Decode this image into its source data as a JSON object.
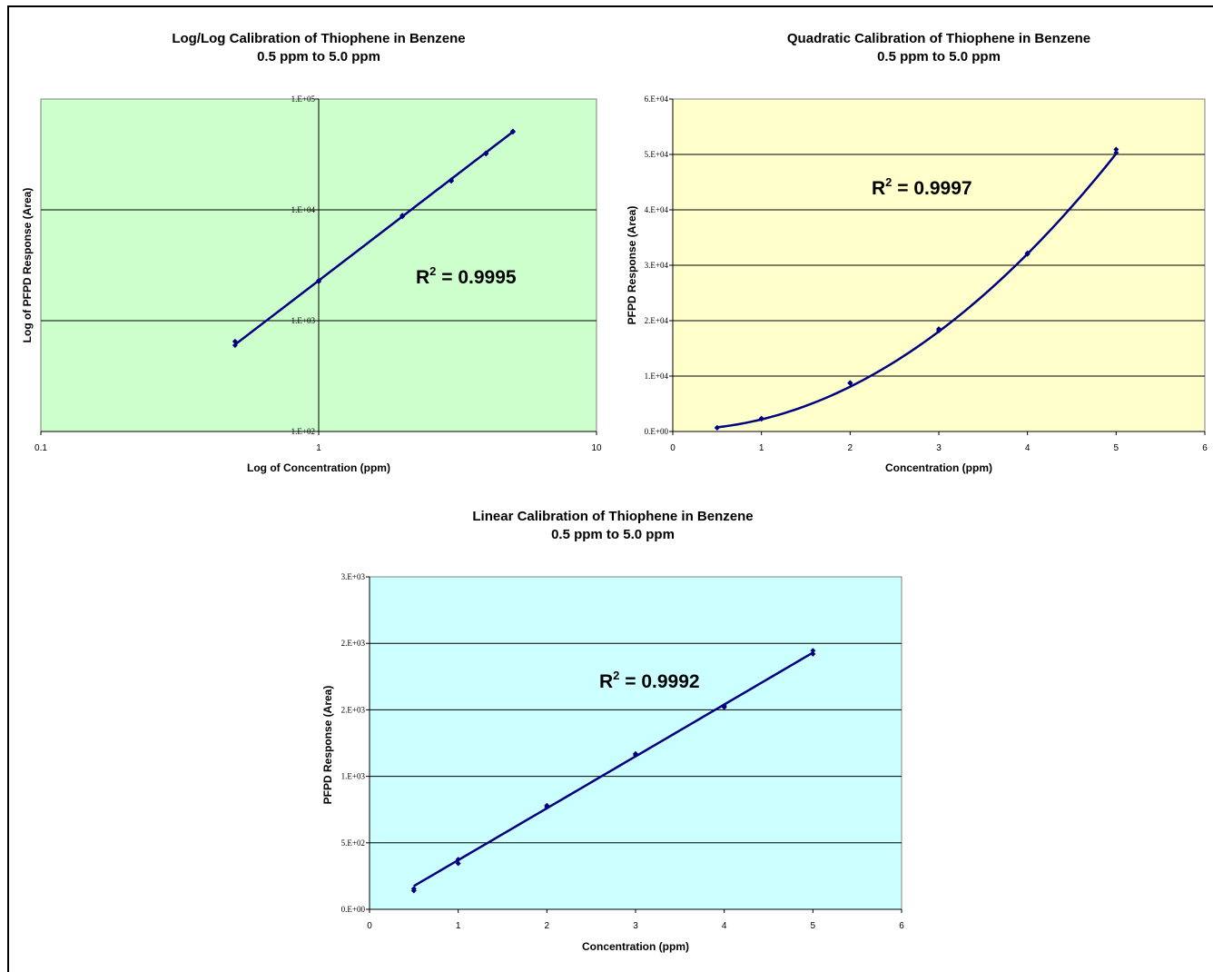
{
  "chart_data": [
    {
      "type": "scatter",
      "title_line1": "Log/Log Calibration of Thiophene in Benzene",
      "title_line2": "0.5 ppm to 5.0 ppm",
      "xlabel": "Log of Concentration (ppm)",
      "ylabel": "Log of PFPD Response (Area)",
      "xscale": "log",
      "yscale": "log",
      "xlim": [
        0.1,
        10
      ],
      "ylim": [
        100,
        100000
      ],
      "xticks": [
        0.1,
        1,
        10
      ],
      "xtick_labels": [
        "0.1",
        "1",
        "10"
      ],
      "yticks": [
        100,
        1000,
        10000,
        100000
      ],
      "ytick_labels": [
        "1.E+02",
        "1.E+03",
        "1.E+04",
        "1.E+05"
      ],
      "y_axis_crosses_x_at": 1,
      "grid": "horizontal",
      "background": "#ccffcc",
      "r2_label": "R",
      "r2_sup": "2",
      "r2_value": " = 0.9995",
      "points": [
        {
          "x": 0.5,
          "y": 600
        },
        {
          "x": 0.5,
          "y": 650
        },
        {
          "x": 1,
          "y": 2250
        },
        {
          "x": 1,
          "y": 2300
        },
        {
          "x": 2,
          "y": 8700
        },
        {
          "x": 2,
          "y": 8900
        },
        {
          "x": 3,
          "y": 18200
        },
        {
          "x": 3,
          "y": 18600
        },
        {
          "x": 4,
          "y": 32000
        },
        {
          "x": 4,
          "y": 32500
        },
        {
          "x": 5,
          "y": 50500
        },
        {
          "x": 5,
          "y": 51200
        }
      ],
      "fit": {
        "kind": "power",
        "a": 2300,
        "b": 1.92
      }
    },
    {
      "type": "scatter",
      "title_line1": "Quadratic Calibration of Thiophene in Benzene",
      "title_line2": "0.5 ppm to 5.0 ppm",
      "xlabel": "Concentration (ppm)",
      "ylabel": "PFPD Response (Area)",
      "xscale": "linear",
      "yscale": "linear",
      "xlim": [
        0,
        6
      ],
      "ylim": [
        0,
        60000
      ],
      "xticks": [
        0,
        1,
        2,
        3,
        4,
        5,
        6
      ],
      "xtick_labels": [
        "0",
        "1",
        "2",
        "3",
        "4",
        "5",
        "6"
      ],
      "yticks": [
        0,
        10000,
        20000,
        30000,
        40000,
        50000,
        60000
      ],
      "ytick_labels": [
        "0.E+00",
        "1.E+04",
        "2.E+04",
        "3.E+04",
        "4.E+04",
        "5.E+04",
        "6.E+04"
      ],
      "grid": "horizontal",
      "background": "#ffffcc",
      "r2_label": "R",
      "r2_sup": "2",
      "r2_value": " = 0.9997",
      "points": [
        {
          "x": 0.5,
          "y": 650
        },
        {
          "x": 0.5,
          "y": 700
        },
        {
          "x": 1,
          "y": 2250
        },
        {
          "x": 1,
          "y": 2350
        },
        {
          "x": 2,
          "y": 8700
        },
        {
          "x": 2,
          "y": 8800
        },
        {
          "x": 3,
          "y": 18200
        },
        {
          "x": 3,
          "y": 18500
        },
        {
          "x": 4,
          "y": 32000
        },
        {
          "x": 4,
          "y": 32200
        },
        {
          "x": 5,
          "y": 50300
        },
        {
          "x": 5,
          "y": 50900
        }
      ],
      "fit": {
        "kind": "quadratic",
        "c0": 340,
        "c1": -190,
        "c2": 2030
      }
    },
    {
      "type": "scatter",
      "title_line1": "Linear Calibration of Thiophene in Benzene",
      "title_line2": "0.5 ppm to 5.0 ppm",
      "xlabel": "Concentration (ppm)",
      "ylabel": "PFPD Response (Area)",
      "xscale": "linear",
      "yscale": "linear",
      "xlim": [
        0,
        6
      ],
      "ylim": [
        0,
        2500
      ],
      "xticks": [
        0,
        1,
        2,
        3,
        4,
        5,
        6
      ],
      "xtick_labels": [
        "0",
        "1",
        "2",
        "3",
        "4",
        "5",
        "6"
      ],
      "yticks": [
        0,
        500,
        1000,
        1500,
        2000,
        2500
      ],
      "ytick_labels": [
        "0.E+00",
        "5.E+02",
        "1.E+03",
        "2.E+03",
        "2.E+03",
        "3.E+03"
      ],
      "grid": "horizontal",
      "background": "#ccffff",
      "r2_label": "R",
      "r2_sup": "2",
      "r2_value": " = 0.9992",
      "points": [
        {
          "x": 0.5,
          "y": 140
        },
        {
          "x": 0.5,
          "y": 155
        },
        {
          "x": 1,
          "y": 345
        },
        {
          "x": 1,
          "y": 375
        },
        {
          "x": 2,
          "y": 770
        },
        {
          "x": 2,
          "y": 780
        },
        {
          "x": 3,
          "y": 1160
        },
        {
          "x": 3,
          "y": 1170
        },
        {
          "x": 4,
          "y": 1520
        },
        {
          "x": 4,
          "y": 1530
        },
        {
          "x": 5,
          "y": 1920
        },
        {
          "x": 5,
          "y": 1945
        }
      ],
      "fit": {
        "kind": "linear",
        "c0": -20,
        "c1": 390
      }
    }
  ]
}
